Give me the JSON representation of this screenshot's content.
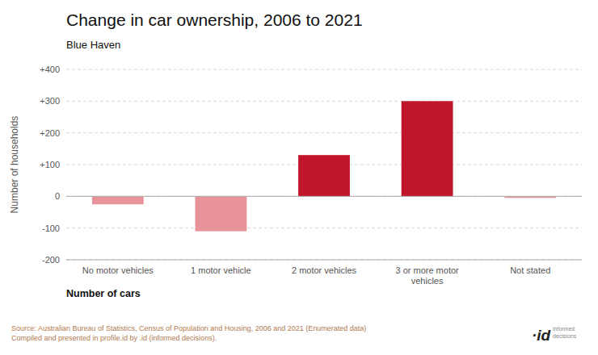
{
  "chart_data": {
    "type": "bar",
    "title": "Change in car ownership, 2006 to 2021",
    "subtitle": "Blue Haven",
    "categories": [
      "No motor vehicles",
      "1 motor vehicle",
      "2 motor vehicles",
      "3 or more motor\nvehicles",
      "Not stated"
    ],
    "values": [
      -25,
      -110,
      130,
      300,
      -5
    ],
    "colors": [
      "#e8929a",
      "#e8929a",
      "#c0152a",
      "#c0152a",
      "#e8929a"
    ],
    "ylabel": "Number of households",
    "xlabel": "Number of cars",
    "ylim": [
      -200,
      400
    ],
    "yticks": [
      -200,
      -100,
      0,
      {
        "value": 100,
        "label": "+100"
      },
      {
        "value": 200,
        "label": "+200"
      },
      {
        "value": 300,
        "label": "+300"
      },
      {
        "value": 400,
        "label": "+400"
      }
    ],
    "grid": true,
    "source": "Source: Australian Bureau of Statistics, Census of Population and Housing, 2006 and 2021 (Enumerated data)\nCompiled and presented in profile.id by .id (informed decisions).",
    "annotations": [
      "·id",
      "informed\ndecisions"
    ]
  }
}
